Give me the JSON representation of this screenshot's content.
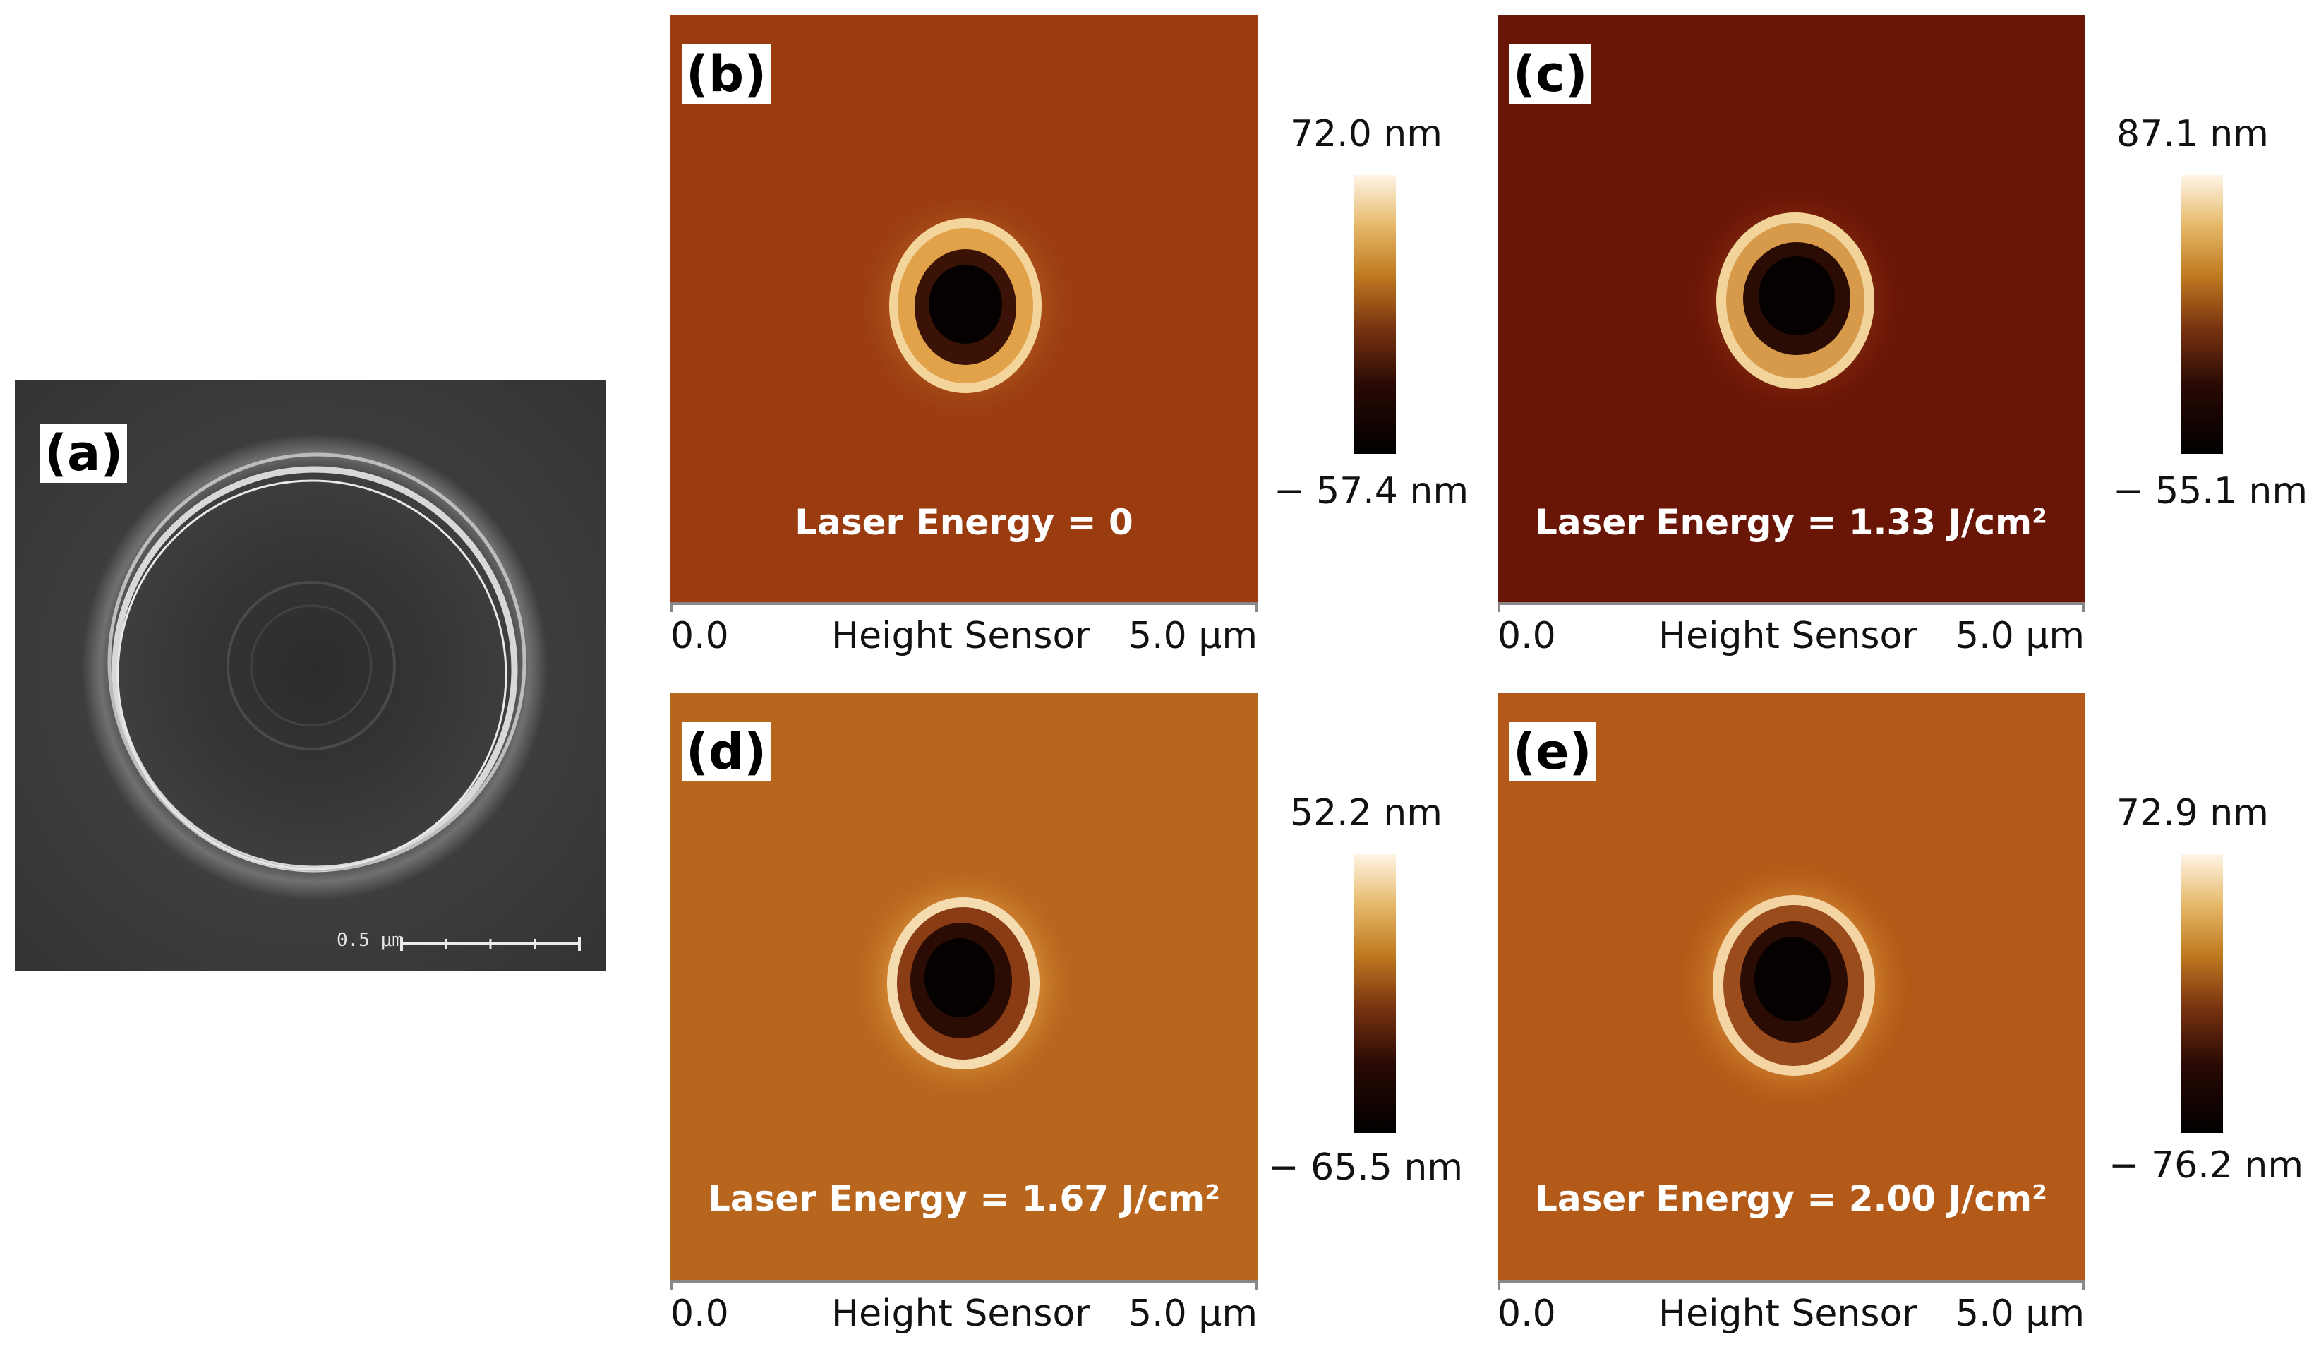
{
  "panel_a": {
    "label": "(a)",
    "scale_bar": "0.5 μm"
  },
  "panels": [
    {
      "label": "(b)",
      "energy": "Laser Energy = 0",
      "cbar_max": "72.0 nm",
      "cbar_min": "− 57.4 nm",
      "axis_start": "0.0",
      "axis_title": "Height Sensor",
      "axis_end": "5.0 μm",
      "bg_color": "#9a3c10"
    },
    {
      "label": "(c)",
      "energy": "Laser Energy = 1.33 J/cm²",
      "cbar_max": "87.1 nm",
      "cbar_min": "− 55.1 nm",
      "axis_start": "0.0",
      "axis_title": "Height Sensor",
      "axis_end": "5.0 μm",
      "bg_color": "#6a1606"
    },
    {
      "label": "(d)",
      "energy": "Laser Energy = 1.67 J/cm²",
      "cbar_max": "52.2 nm",
      "cbar_min": "− 65.5 nm",
      "axis_start": "0.0",
      "axis_title": "Height Sensor",
      "axis_end": "5.0 μm",
      "bg_color": "#b8661e"
    },
    {
      "label": "(e)",
      "energy": "Laser Energy = 2.00 J/cm²",
      "cbar_max": "72.9 nm",
      "cbar_min": "− 76.2 nm",
      "axis_start": "0.0",
      "axis_title": "Height Sensor",
      "axis_end": "5.0 μm",
      "bg_color": "#b45a18"
    }
  ]
}
